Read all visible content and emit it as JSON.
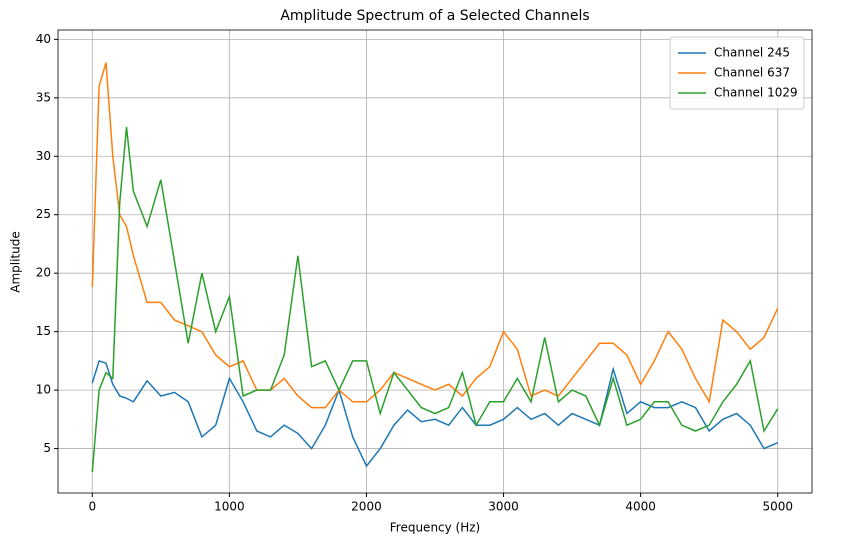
{
  "chart_data": {
    "type": "line",
    "title": "Amplitude Spectrum of a Selected Channels",
    "xlabel": "Frequency (Hz)",
    "ylabel": "Amplitude",
    "x": [
      0,
      50,
      100,
      150,
      200,
      250,
      300,
      400,
      500,
      600,
      700,
      800,
      900,
      1000,
      1100,
      1200,
      1300,
      1400,
      1500,
      1600,
      1700,
      1800,
      1900,
      2000,
      2100,
      2200,
      2300,
      2400,
      2500,
      2600,
      2700,
      2800,
      2900,
      3000,
      3100,
      3200,
      3300,
      3400,
      3500,
      3600,
      3700,
      3800,
      3900,
      4000,
      4100,
      4200,
      4300,
      4400,
      4500,
      4600,
      4700,
      4800,
      4900,
      5000
    ],
    "series": [
      {
        "name": "Channel 245",
        "color": "#1f77b4",
        "values": [
          10.6,
          12.5,
          12.3,
          10.5,
          9.5,
          9.3,
          9.0,
          10.8,
          9.5,
          9.8,
          9.0,
          6.0,
          7.0,
          11.0,
          9.0,
          6.5,
          6.0,
          7.0,
          6.3,
          5.0,
          7.0,
          10.0,
          6.0,
          3.5,
          5.0,
          7.0,
          8.3,
          7.3,
          7.5,
          7.0,
          8.5,
          7.0,
          7.0,
          7.5,
          8.5,
          7.5,
          8.0,
          7.0,
          8.0,
          7.5,
          7.0,
          11.8,
          8.0,
          9.0,
          8.5,
          8.5,
          9.0,
          8.5,
          6.5,
          7.5,
          8.0,
          7.0,
          5.0,
          5.5
        ]
      },
      {
        "name": "Channel 637",
        "color": "#ff7f0e",
        "values": [
          18.8,
          36,
          38,
          30,
          25,
          24,
          21.5,
          17.5,
          17.5,
          16,
          15.5,
          15,
          13,
          12,
          12.5,
          10,
          10,
          11,
          9.5,
          8.5,
          8.5,
          10,
          9,
          9,
          10,
          11.5,
          11,
          10.5,
          10,
          10.5,
          9.5,
          11,
          12,
          15,
          13.5,
          9.5,
          10,
          9.5,
          11,
          12.5,
          14,
          14,
          13,
          10.5,
          12.5,
          15,
          13.5,
          11,
          9,
          16,
          15,
          13.5,
          14.5,
          17
        ]
      },
      {
        "name": "Channel 1029",
        "color": "#2ca02c",
        "values": [
          3,
          10,
          11.5,
          11,
          26,
          32.5,
          27,
          24,
          28,
          21,
          14,
          20,
          15,
          18,
          9.5,
          10,
          10,
          13,
          21.5,
          12,
          12.5,
          10,
          12.5,
          12.5,
          8,
          11.5,
          10,
          8.5,
          8,
          8.5,
          11.5,
          7,
          9,
          9,
          11,
          9,
          14.5,
          9,
          10,
          9.5,
          7,
          11,
          7,
          7.5,
          9,
          9,
          7,
          6.5,
          7,
          9,
          10.5,
          12.5,
          6.5,
          8.4
        ]
      }
    ],
    "xlim": [
      -250,
      5250
    ],
    "xticks": [
      0,
      1000,
      2000,
      3000,
      4000,
      5000
    ],
    "ylim": [
      1.2,
      40.8
    ],
    "yticks": [
      5,
      10,
      15,
      20,
      25,
      30,
      35,
      40
    ],
    "grid": true,
    "legend": "upper right"
  }
}
